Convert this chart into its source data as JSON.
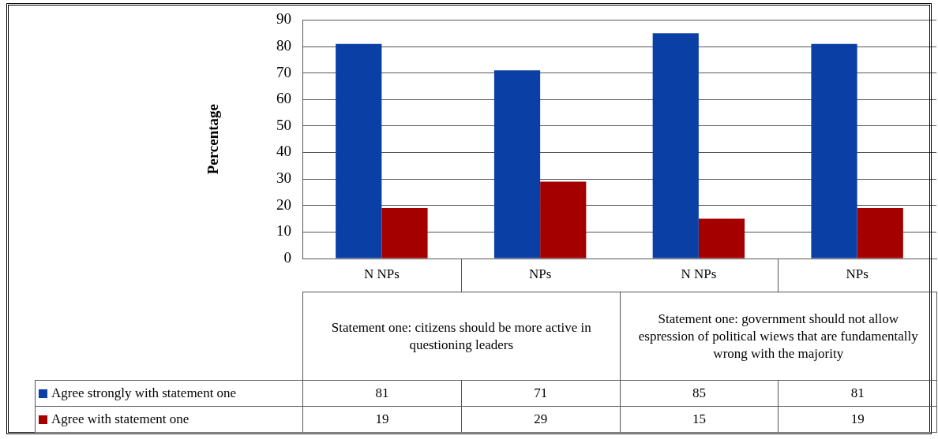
{
  "chart_data": {
    "type": "bar",
    "ylabel": "Percentage",
    "categories": [
      "N NPs",
      "NPs",
      "N NPs",
      "NPs"
    ],
    "series": [
      {
        "name": "Agree strongly with statement one",
        "color": "#0a3fa6",
        "values": [
          81,
          71,
          85,
          81
        ]
      },
      {
        "name": "Agree with statement one",
        "color": "#a50000",
        "values": [
          19,
          29,
          15,
          19
        ]
      }
    ],
    "ylim": [
      0,
      90
    ],
    "yticks": [
      0,
      10,
      20,
      30,
      40,
      50,
      60,
      70,
      80,
      90
    ],
    "grid": "y",
    "legend": "bottom",
    "data_labels": true,
    "annotations": [
      "Statement one: citizens should be more active in questioning leaders",
      "Statement one: government should not allow espression of political wiews that are fundamentally wrong with the majority"
    ]
  }
}
